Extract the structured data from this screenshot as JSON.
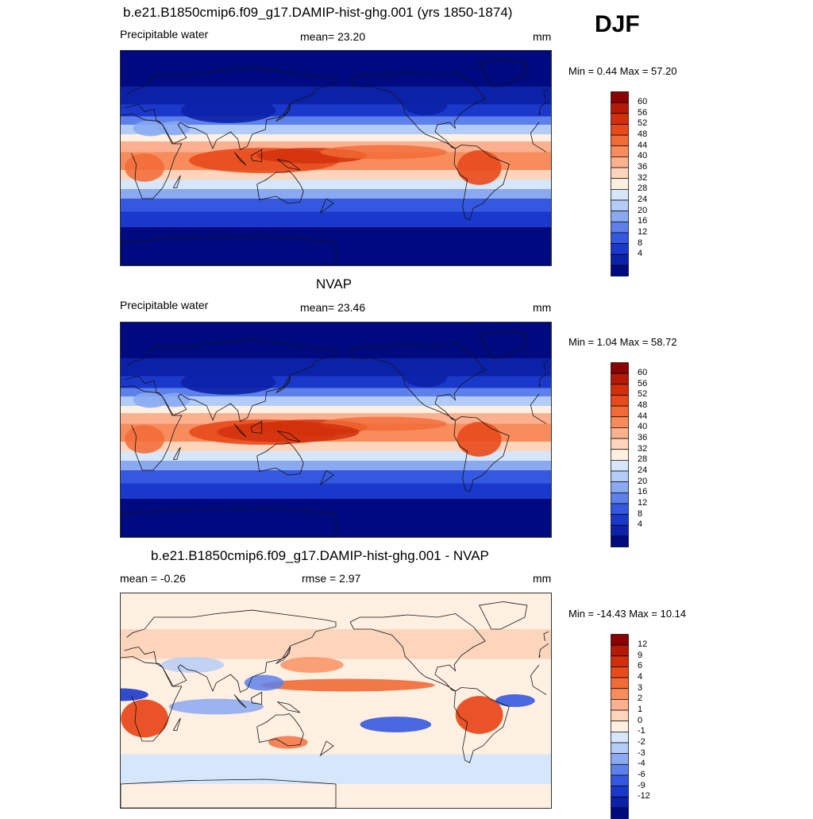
{
  "season": "DJF",
  "panels": [
    {
      "title": "b.e21.B1850cmip6.f09_g17.DAMIP-hist-ghg.001 (yrs 1850-1874)",
      "left_label": "Precipitable water",
      "center_label": "mean=  23.20",
      "right_label": "mm",
      "minmax": "Min =   0.44 Max =  57.20",
      "kind": "abs",
      "colorbar": {
        "labels": [
          "60",
          "56",
          "52",
          "48",
          "44",
          "40",
          "36",
          "32",
          "28",
          "24",
          "20",
          "16",
          "12",
          "8",
          "4"
        ],
        "colors": [
          "#8b0000",
          "#b41a06",
          "#d2300c",
          "#e84a1c",
          "#f26a36",
          "#f88c5c",
          "#fbb190",
          "#fdd5bd",
          "#fff0e2",
          "#d6e6fb",
          "#b2cbf7",
          "#8aa9f1",
          "#5e80ea",
          "#3458e0",
          "#1a39cc",
          "#0b22a8",
          "#000a80"
        ]
      }
    },
    {
      "title": "NVAP",
      "left_label": "Precipitable water",
      "center_label": "mean=  23.46",
      "right_label": "mm",
      "minmax": "Min =   1.04 Max =  58.72",
      "kind": "abs",
      "colorbar": {
        "labels": [
          "60",
          "56",
          "52",
          "48",
          "44",
          "40",
          "36",
          "32",
          "28",
          "24",
          "20",
          "16",
          "12",
          "8",
          "4"
        ],
        "colors": [
          "#8b0000",
          "#b41a06",
          "#d2300c",
          "#e84a1c",
          "#f26a36",
          "#f88c5c",
          "#fbb190",
          "#fdd5bd",
          "#fff0e2",
          "#d6e6fb",
          "#b2cbf7",
          "#8aa9f1",
          "#5e80ea",
          "#3458e0",
          "#1a39cc",
          "#0b22a8",
          "#000a80"
        ]
      }
    },
    {
      "title": "b.e21.B1850cmip6.f09_g17.DAMIP-hist-ghg.001 - NVAP",
      "left_label": "mean =  -0.26",
      "center_label": "rmse =   2.97",
      "right_label": "mm",
      "minmax": "Min = -14.43 Max =  10.14",
      "kind": "diff",
      "colorbar": {
        "labels": [
          "12",
          "9",
          "6",
          "4",
          "3",
          "2",
          "1",
          "0",
          "-1",
          "-2",
          "-3",
          "-4",
          "-6",
          "-9",
          "-12"
        ],
        "colors": [
          "#8b0000",
          "#b41a06",
          "#d2300c",
          "#e84a1c",
          "#f26a36",
          "#f88c5c",
          "#fbb190",
          "#fdd5bd",
          "#fff0e2",
          "#d6e6fb",
          "#b2cbf7",
          "#8aa9f1",
          "#5e80ea",
          "#3458e0",
          "#1a39cc",
          "#0b22a8",
          "#000a80"
        ]
      }
    }
  ]
}
